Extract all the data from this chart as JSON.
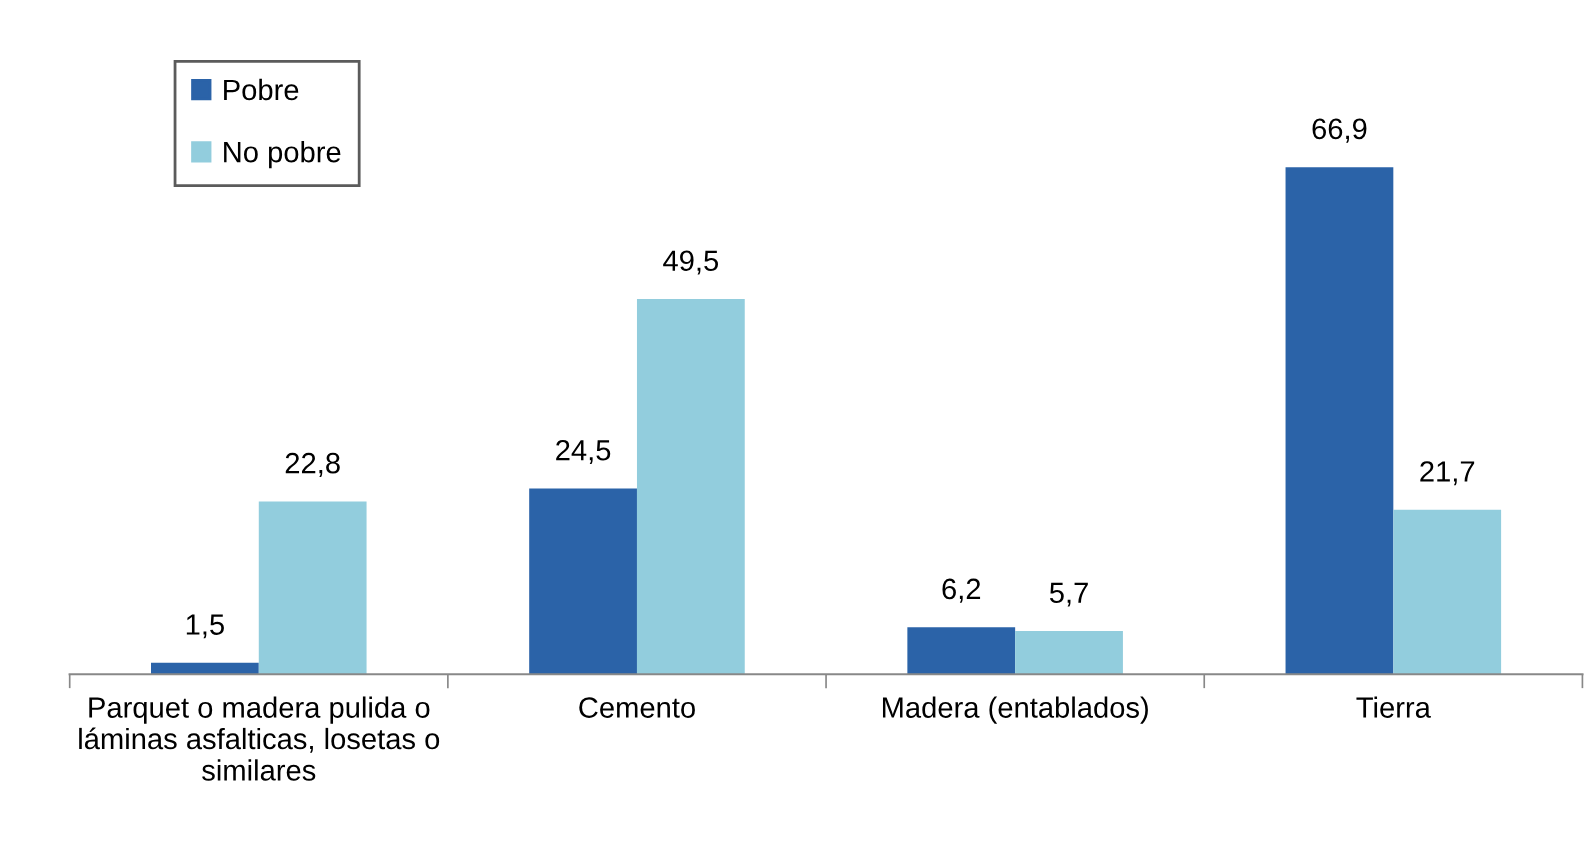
{
  "chart_data": {
    "type": "bar",
    "categories": [
      "Parquet o madera pulida o\nláminas asfalticas, losetas o\nsimilares",
      "Cemento",
      "Madera (entablados)",
      "Tierra"
    ],
    "series": [
      {
        "name": "Pobre",
        "color": "#2b63a8",
        "values": [
          1.5,
          24.5,
          6.2,
          66.9
        ],
        "value_labels": [
          "1,5",
          "24,5",
          "6,2",
          "66,9"
        ]
      },
      {
        "name": "No pobre",
        "color": "#92cddd",
        "values": [
          22.8,
          49.5,
          5.7,
          21.7
        ],
        "value_labels": [
          "22,8",
          "49,5",
          "5,7",
          "21,7"
        ]
      }
    ],
    "legend": "top left",
    "grid": false
  }
}
